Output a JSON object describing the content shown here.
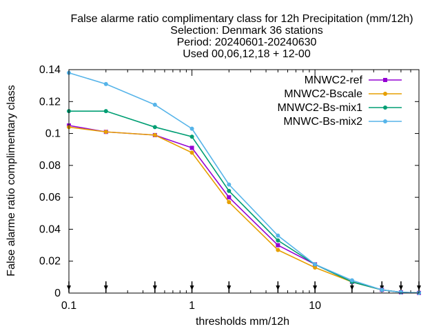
{
  "chart_data": {
    "type": "line",
    "title_lines": [
      "False alarme ratio complimentary class  for 12h Precipitation (mm/12h)",
      "Selection: Denmark     36 stations",
      "Period: 20240601-20240630",
      "Used 00,06,12,18 + 12-00"
    ],
    "xlabel": "thresholds mm/12h",
    "ylabel": "False alarme ratio complimentary class",
    "x_scale": "log",
    "xlim": [
      0.1,
      70
    ],
    "ylim": [
      0,
      0.14
    ],
    "x_ticks": [
      {
        "value": 0.1,
        "label": "0.1"
      },
      {
        "value": 1,
        "label": "1"
      },
      {
        "value": 10,
        "label": "10"
      }
    ],
    "y_ticks": [
      {
        "value": 0,
        "label": "0"
      },
      {
        "value": 0.02,
        "label": "0.02"
      },
      {
        "value": 0.04,
        "label": "0.04"
      },
      {
        "value": 0.06,
        "label": "0.06"
      },
      {
        "value": 0.08,
        "label": "0.08"
      },
      {
        "value": 0.1,
        "label": "0.1"
      },
      {
        "value": 0.12,
        "label": "0.12"
      },
      {
        "value": 0.14,
        "label": "0.14"
      }
    ],
    "threshold_markers": [
      0.1,
      0.2,
      0.5,
      1,
      2,
      5,
      10,
      20,
      35,
      50,
      70
    ],
    "legend_position": "top-right",
    "x": [
      0.1,
      0.2,
      0.5,
      1,
      2,
      5,
      10,
      20,
      35,
      50,
      70
    ],
    "series": [
      {
        "name": "MNWC2-ref",
        "color": "#9400d3",
        "marker": "square",
        "values": [
          0.105,
          0.101,
          0.099,
          0.091,
          0.06,
          0.03,
          0.018,
          0.007,
          0.002,
          0.0005,
          0.0001
        ]
      },
      {
        "name": "MNWC2-Bscale",
        "color": "#e69f00",
        "marker": "circle",
        "values": [
          0.104,
          0.101,
          0.099,
          0.088,
          0.057,
          0.027,
          0.016,
          0.007,
          0.002,
          0.0005,
          0.0001
        ]
      },
      {
        "name": "MNWC2-Bs-mix1",
        "color": "#009e73",
        "marker": "circle",
        "values": [
          0.114,
          0.114,
          0.104,
          0.098,
          0.064,
          0.033,
          0.018,
          0.007,
          0.002,
          0.0005,
          0.0001
        ]
      },
      {
        "name": "MNWC-Bs-mix2",
        "color": "#56b4e9",
        "marker": "circle",
        "values": [
          0.138,
          0.131,
          0.118,
          0.103,
          0.068,
          0.036,
          0.018,
          0.008,
          0.002,
          0.0005,
          0.0001
        ]
      }
    ]
  }
}
